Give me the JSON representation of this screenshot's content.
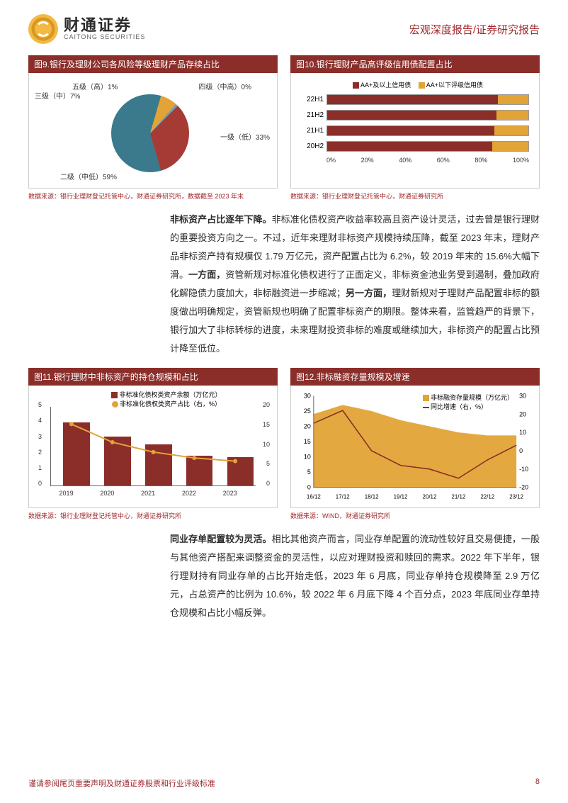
{
  "header": {
    "logo_zh": "财通证券",
    "logo_en": "CAITONG SECURITIES",
    "doc_type": "宏观深度报告/证券研究报告"
  },
  "colors": {
    "brand_red": "#8b2e2a",
    "text_red": "#a0282c",
    "gold": "#e2a436",
    "teal": "#3a7a8c",
    "dark_red": "#a63b36",
    "orange": "#d89820"
  },
  "fig9": {
    "title": "图9.银行及理财公司各风险等级理财产品存续占比",
    "source": "数据来源：银行业理财登记托管中心，财通证券研究所，数据截至 2023 年末",
    "data": [
      {
        "name": "一级（低）",
        "pct": 33,
        "color": "#a63b36"
      },
      {
        "name": "二级（中低）",
        "pct": 59,
        "color": "#3a7a8c"
      },
      {
        "name": "三级（中）",
        "pct": 7,
        "color": "#e2a436"
      },
      {
        "name": "四级（中高）",
        "pct": 0,
        "color": "#999999"
      },
      {
        "name": "五级（高）",
        "pct": 1,
        "color": "#7a9bb0"
      }
    ],
    "labels": {
      "l1": "一级（低）33%",
      "l2": "二级（中低）59%",
      "l3": "三级（中）7%",
      "l4": "四级（中高）0%",
      "l5": "五级（高）1%"
    }
  },
  "fig10": {
    "title": "图10.银行理财产品高评级信用债配置占比",
    "source": "数据来源：银行业理财登记托管中心，财通证券研究所",
    "legend": {
      "a": "AA+及以上信用债",
      "b": "AA+以下评级信用债"
    },
    "legend_colors": {
      "a": "#8b2e2a",
      "b": "#e2a436"
    },
    "rows": [
      {
        "period": "22H1",
        "a": 85,
        "b": 15
      },
      {
        "period": "21H2",
        "a": 84,
        "b": 16
      },
      {
        "period": "21H1",
        "a": 83,
        "b": 17
      },
      {
        "period": "20H2",
        "a": 82,
        "b": 18
      }
    ],
    "xticks": [
      "0%",
      "20%",
      "40%",
      "60%",
      "80%",
      "100%"
    ]
  },
  "para1": {
    "bold1": "非标资产占比逐年下降。",
    "text1": "非标准化债权资产收益率较高且资产设计灵活，过去曾是银行理财的重要投资方向之一。不过，近年来理财非标资产规模持续压降，截至 2023 年末，理财产品非标资产持有规模仅 1.79 万亿元，资产配置占比为 6.2%，较 2019 年末的 15.6%大幅下滑。",
    "bold2": "一方面，",
    "text2": "资管新规对标准化债权进行了正面定义，非标资金池业务受到遏制，叠加政府化解隐债力度加大，非标融资进一步缩减；",
    "bold3": "另一方面，",
    "text3": "理财新规对于理财产品配置非标的额度做出明确规定，资管新规也明确了配置非标资产的期限。整体来看，监管趋严的背景下，银行加大了非标转标的进度，未来理财投资非标的难度或继续加大，非标资产的配置占比预计降至低位。"
  },
  "fig11": {
    "title": "图11.银行理财中非标资产的持仓规模和占比",
    "source": "数据来源：银行业理财登记托管中心，财通证券研究所",
    "legend": {
      "bar": "非标准化债权类资产余额（万亿元）",
      "line": "非标准化债权类资产占比（右，%）"
    },
    "years": [
      "2019",
      "2020",
      "2021",
      "2022",
      "2023"
    ],
    "bar_values": [
      4.0,
      3.1,
      2.6,
      1.9,
      1.8
    ],
    "line_values": [
      15.6,
      11.0,
      8.5,
      7.0,
      6.2
    ],
    "y_left": {
      "min": 0,
      "max": 5,
      "step": 1
    },
    "y_right": {
      "min": 0,
      "max": 20,
      "step": 5
    },
    "bar_color": "#8b2e2a",
    "line_color": "#e2a436"
  },
  "fig12": {
    "title": "图12.非标融资存量规模及增速",
    "source": "数据来源：WIND，财通证券研究所",
    "legend": {
      "area": "非标融资存量规模（万亿元）",
      "line": "同比增速（右，%）"
    },
    "xticks": [
      "16/12",
      "17/12",
      "18/12",
      "19/12",
      "20/12",
      "21/12",
      "22/12",
      "23/12"
    ],
    "y_left": {
      "min": 0,
      "max": 30,
      "step": 5
    },
    "y_right": {
      "min": -20,
      "max": 30,
      "step": 10
    },
    "area_color": "#e2a436",
    "line_color": "#8b2e2a",
    "area_values": [
      24,
      27,
      25,
      22,
      20,
      18,
      17,
      17
    ],
    "line_values": [
      15,
      22,
      0,
      -8,
      -10,
      -15,
      -5,
      3
    ]
  },
  "para2": {
    "bold": "同业存单配置较为灵活。",
    "text": "相比其他资产而言，同业存单配置的流动性较好且交易便捷，一般与其他资产搭配来调整资金的灵活性，以应对理财投资和赎回的需求。2022 年下半年，银行理财持有同业存单的占比开始走低，2023 年 6 月底，同业存单持仓规模降至 2.9 万亿元，占总资产的比例为 10.6%，较 2022 年 6 月底下降 4 个百分点，2023 年底同业存单持仓规模和占比小幅反弹。"
  },
  "footer": {
    "disclaimer": "谨请参阅尾页重要声明及财通证券股票和行业评级标准",
    "page": "8"
  }
}
